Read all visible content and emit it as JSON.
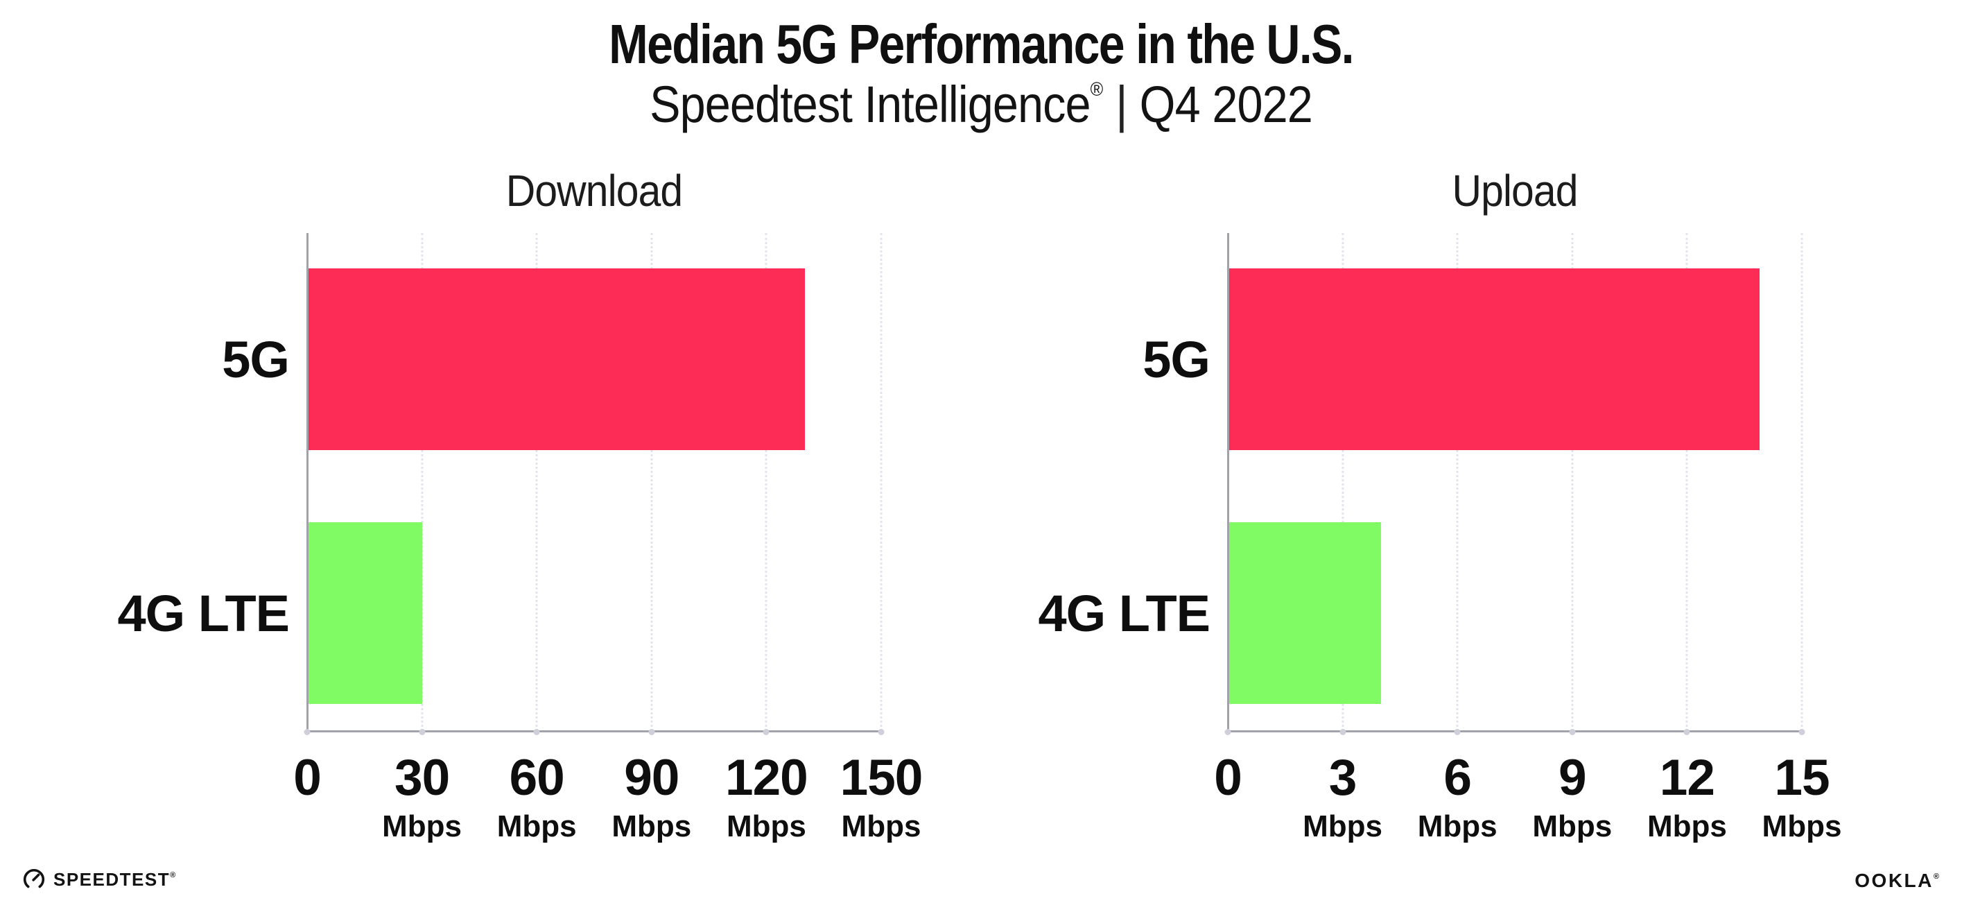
{
  "header": {
    "title": "Median 5G Performance in the U.S.",
    "subtitle": {
      "product": "Speedtest Intelligence",
      "registered_mark": "®",
      "separator": "|",
      "period": "Q4 2022"
    }
  },
  "chart_data": [
    {
      "type": "bar",
      "orientation": "horizontal",
      "title": "Download",
      "categories": [
        "5G",
        "4G LTE"
      ],
      "values": [
        130,
        30
      ],
      "unit": "Mbps",
      "xlim": [
        0,
        150
      ],
      "xticks": [
        0,
        30,
        60,
        90,
        120,
        150
      ],
      "xtick_labels": [
        "0",
        "30",
        "60",
        "90",
        "120",
        "150"
      ],
      "xtick_unit_labels": [
        "",
        "Mbps",
        "Mbps",
        "Mbps",
        "Mbps",
        "Mbps"
      ],
      "bar_colors": [
        "#fd2c56",
        "#80fb63"
      ],
      "grid": "vertical-dotted",
      "legend": "none"
    },
    {
      "type": "bar",
      "orientation": "horizontal",
      "title": "Upload",
      "categories": [
        "5G",
        "4G LTE"
      ],
      "values": [
        13.9,
        4
      ],
      "unit": "Mbps",
      "xlim": [
        0,
        15
      ],
      "xticks": [
        0,
        3,
        6,
        9,
        12,
        15
      ],
      "xtick_labels": [
        "0",
        "3",
        "6",
        "9",
        "12",
        "15"
      ],
      "xtick_unit_labels": [
        "",
        "Mbps",
        "Mbps",
        "Mbps",
        "Mbps",
        "Mbps"
      ],
      "bar_colors": [
        "#fd2c56",
        "#80fb63"
      ],
      "grid": "vertical-dotted",
      "legend": "none"
    }
  ],
  "footer": {
    "speedtest_wordmark": "SPEEDTEST",
    "speedtest_mark": "®",
    "ookla_wordmark": "OOKLA",
    "ookla_mark": "®"
  },
  "colors": {
    "bar_5g": "#fd2c56",
    "bar_4g_lte": "#80fb63",
    "axis": "#a2a2aa",
    "gridline": "#e3e3ee",
    "text": "#161616",
    "background": "#ffffff"
  }
}
